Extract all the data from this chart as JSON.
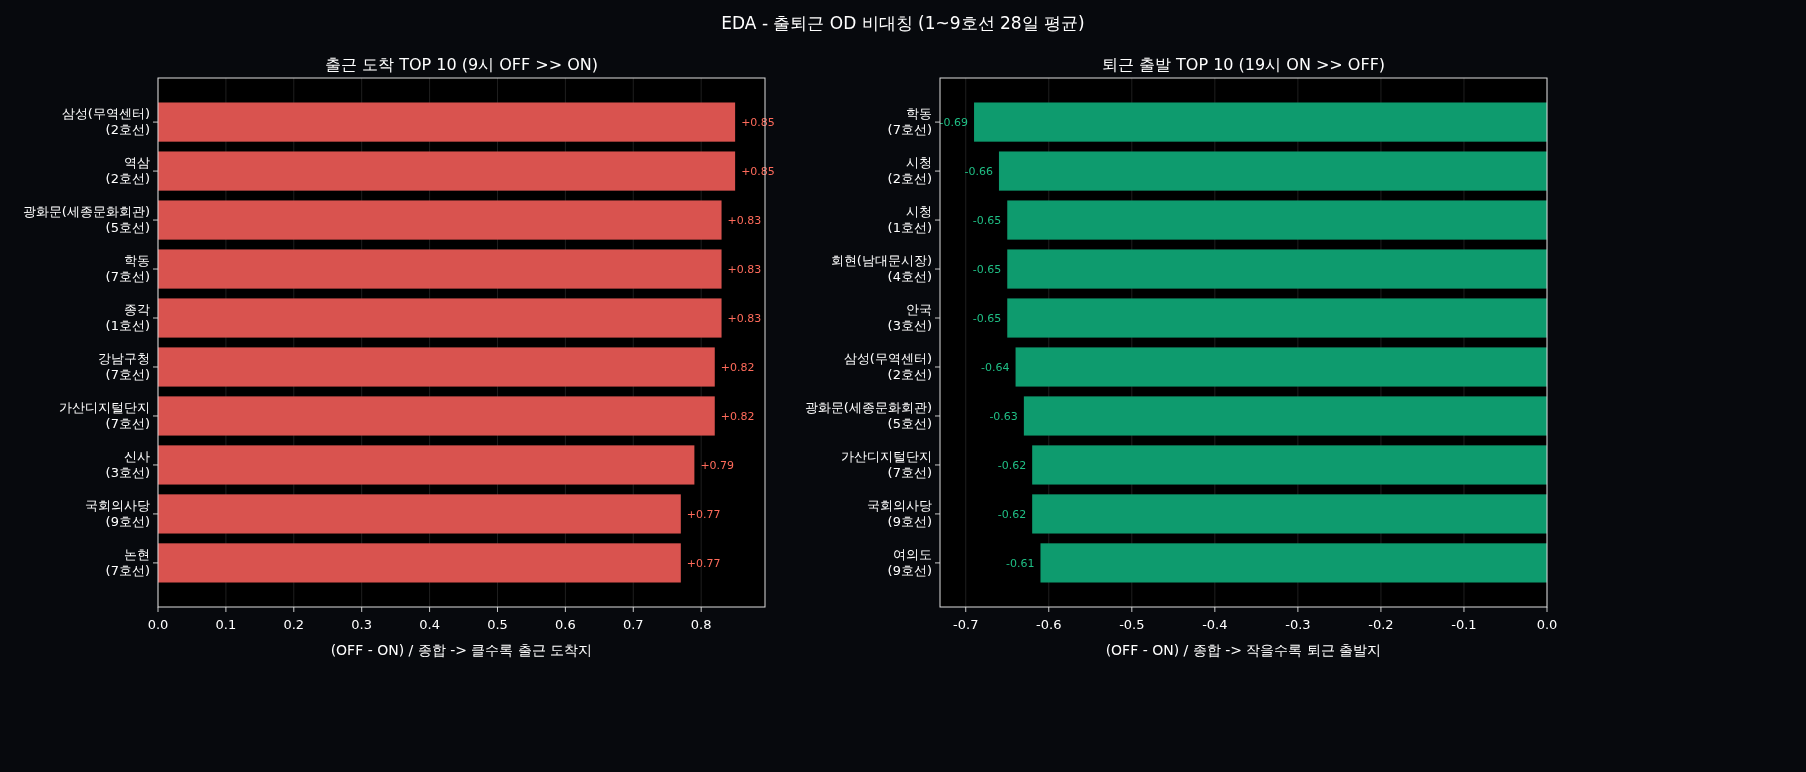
{
  "chart_data": [
    {
      "type": "bar",
      "orientation": "horizontal",
      "title": "EDA - 출퇴근 OD 비대칭 (1~9호선 28일 평균)",
      "subtitle": "출근 도착 TOP 10 (9시 OFF >> ON)",
      "xlabel": "(OFF - ON) / 종합 -> 클수록 출근 도착지",
      "categories": [
        "삼성(무역센터)\n(2호선)",
        "역삼\n(2호선)",
        "광화문(세종문화회관)\n(5호선)",
        "학동\n(7호선)",
        "종각\n(1호선)",
        "강남구청\n(7호선)",
        "가산디지털단지\n(7호선)",
        "신사\n(3호선)",
        "국회의사당\n(9호선)",
        "논현\n(7호선)"
      ],
      "values": [
        0.85,
        0.85,
        0.83,
        0.83,
        0.83,
        0.82,
        0.82,
        0.79,
        0.77,
        0.77
      ],
      "value_labels": [
        "+0.85",
        "+0.85",
        "+0.83",
        "+0.83",
        "+0.83",
        "+0.82",
        "+0.82",
        "+0.79",
        "+0.77",
        "+0.77"
      ],
      "color": "#d9534f",
      "xlim": [
        0,
        0.894
      ],
      "xticks": [
        {
          "value": 0,
          "label": "0.0"
        },
        {
          "value": 0.1,
          "label": "0.1"
        },
        {
          "value": 0.2,
          "label": "0.2"
        },
        {
          "value": 0.3,
          "label": "0.3"
        },
        {
          "value": 0.4,
          "label": "0.4"
        },
        {
          "value": 0.5,
          "label": "0.5"
        },
        {
          "value": 0.6,
          "label": "0.6"
        },
        {
          "value": 0.7,
          "label": "0.7"
        },
        {
          "value": 0.8,
          "label": "0.8"
        }
      ],
      "grid": "x"
    },
    {
      "type": "bar",
      "orientation": "horizontal",
      "subtitle": "퇴근 출발 TOP 10 (19시 ON >> OFF)",
      "xlabel": "(OFF - ON) / 종합 -> 작을수록 퇴근 출발지",
      "categories": [
        "학동\n(7호선)",
        "시청\n(2호선)",
        "시청\n(1호선)",
        "회현(남대문시장)\n(4호선)",
        "안국\n(3호선)",
        "삼성(무역센터)\n(2호선)",
        "광화문(세종문화회관)\n(5호선)",
        "가산디지털단지\n(7호선)",
        "국회의사당\n(9호선)",
        "여의도\n(9호선)"
      ],
      "values": [
        -0.69,
        -0.66,
        -0.65,
        -0.65,
        -0.65,
        -0.64,
        -0.63,
        -0.62,
        -0.62,
        -0.61
      ],
      "value_labels": [
        "-0.69",
        "-0.66",
        "-0.65",
        "-0.65",
        "-0.65",
        "-0.64",
        "-0.63",
        "-0.62",
        "-0.62",
        "-0.61"
      ],
      "color": "#0e9b6e",
      "xlim": [
        -0.731,
        0
      ],
      "xticks": [
        {
          "value": -0.7,
          "label": "-0.7"
        },
        {
          "value": -0.6,
          "label": "-0.6"
        },
        {
          "value": -0.5,
          "label": "-0.5"
        },
        {
          "value": -0.4,
          "label": "-0.4"
        },
        {
          "value": -0.3,
          "label": "-0.3"
        },
        {
          "value": -0.2,
          "label": "-0.2"
        },
        {
          "value": -0.1,
          "label": "-0.1"
        },
        {
          "value": 0,
          "label": "0.0"
        }
      ],
      "grid": "x"
    }
  ]
}
